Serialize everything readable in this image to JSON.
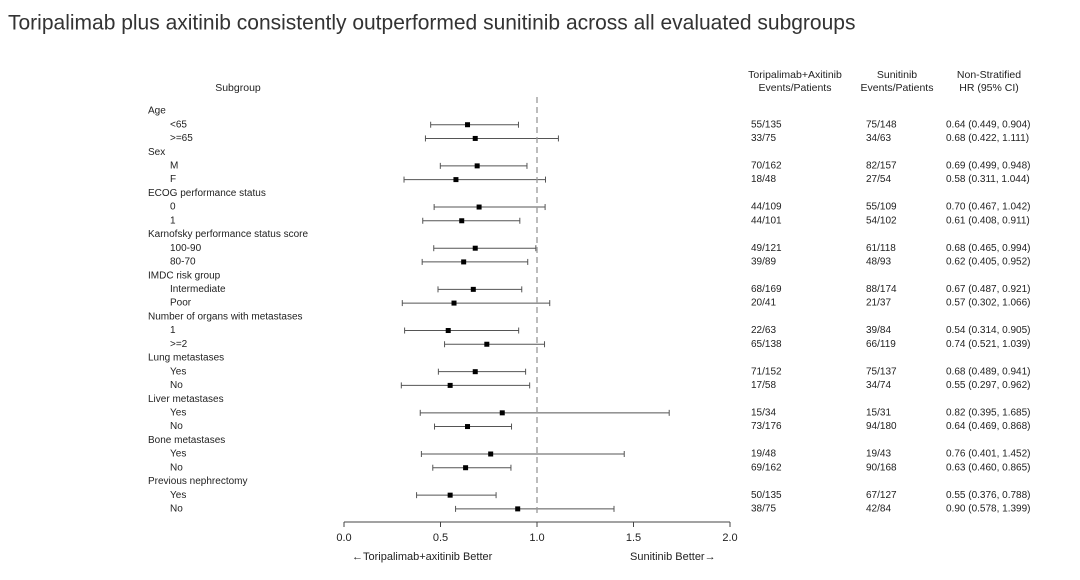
{
  "chart_data": {
    "type": "forest",
    "title": "Toripalimab plus axitinib consistently outperformed sunitinib across all evaluated subgroups",
    "subgroup_header": "Subgroup",
    "column_headers": [
      [
        "Toripalimab+Axitinib",
        "Events/Patients"
      ],
      [
        "Sunitinib",
        "Events/Patients"
      ],
      [
        "Non-Stratified",
        "HR (95% CI)"
      ]
    ],
    "groups": [
      {
        "name": "Age",
        "rows": [
          {
            "label": "<65",
            "tor": "55/135",
            "sun": "75/148",
            "hr": 0.64,
            "lo": 0.449,
            "hi": 0.904,
            "hr_label": "0.64 (0.449, 0.904)"
          },
          {
            "label": ">=65",
            "tor": "33/75",
            "sun": "34/63",
            "hr": 0.68,
            "lo": 0.422,
            "hi": 1.111,
            "hr_label": "0.68 (0.422, 1.111)"
          }
        ]
      },
      {
        "name": "Sex",
        "rows": [
          {
            "label": "M",
            "tor": "70/162",
            "sun": "82/157",
            "hr": 0.69,
            "lo": 0.499,
            "hi": 0.948,
            "hr_label": "0.69 (0.499, 0.948)"
          },
          {
            "label": "F",
            "tor": "18/48",
            "sun": "27/54",
            "hr": 0.58,
            "lo": 0.311,
            "hi": 1.044,
            "hr_label": "0.58 (0.311, 1.044)"
          }
        ]
      },
      {
        "name": "ECOG performance status",
        "rows": [
          {
            "label": "0",
            "tor": "44/109",
            "sun": "55/109",
            "hr": 0.7,
            "lo": 0.467,
            "hi": 1.042,
            "hr_label": "0.70 (0.467, 1.042)"
          },
          {
            "label": "1",
            "tor": "44/101",
            "sun": "54/102",
            "hr": 0.61,
            "lo": 0.408,
            "hi": 0.911,
            "hr_label": "0.61 (0.408, 0.911)"
          }
        ]
      },
      {
        "name": "Karnofsky performance status score",
        "rows": [
          {
            "label": "100-90",
            "tor": "49/121",
            "sun": "61/118",
            "hr": 0.68,
            "lo": 0.465,
            "hi": 0.994,
            "hr_label": "0.68 (0.465, 0.994)"
          },
          {
            "label": "80-70",
            "tor": "39/89",
            "sun": "48/93",
            "hr": 0.62,
            "lo": 0.405,
            "hi": 0.952,
            "hr_label": "0.62 (0.405, 0.952)"
          }
        ]
      },
      {
        "name": "IMDC risk group",
        "rows": [
          {
            "label": "Intermediate",
            "tor": "68/169",
            "sun": "88/174",
            "hr": 0.67,
            "lo": 0.487,
            "hi": 0.921,
            "hr_label": "0.67 (0.487, 0.921)"
          },
          {
            "label": "Poor",
            "tor": "20/41",
            "sun": "21/37",
            "hr": 0.57,
            "lo": 0.302,
            "hi": 1.066,
            "hr_label": "0.57 (0.302, 1.066)"
          }
        ]
      },
      {
        "name": "Number of organs with metastases",
        "rows": [
          {
            "label": "1",
            "tor": "22/63",
            "sun": "39/84",
            "hr": 0.54,
            "lo": 0.314,
            "hi": 0.905,
            "hr_label": "0.54 (0.314, 0.905)"
          },
          {
            "label": ">=2",
            "tor": "65/138",
            "sun": "66/119",
            "hr": 0.74,
            "lo": 0.521,
            "hi": 1.039,
            "hr_label": "0.74 (0.521, 1.039)"
          }
        ]
      },
      {
        "name": "Lung metastases",
        "rows": [
          {
            "label": "Yes",
            "tor": "71/152",
            "sun": "75/137",
            "hr": 0.68,
            "lo": 0.489,
            "hi": 0.941,
            "hr_label": "0.68 (0.489, 0.941)"
          },
          {
            "label": "No",
            "tor": "17/58",
            "sun": "34/74",
            "hr": 0.55,
            "lo": 0.297,
            "hi": 0.962,
            "hr_label": "0.55 (0.297, 0.962)"
          }
        ]
      },
      {
        "name": "Liver metastases",
        "rows": [
          {
            "label": "Yes",
            "tor": "15/34",
            "sun": "15/31",
            "hr": 0.82,
            "lo": 0.395,
            "hi": 1.685,
            "hr_label": "0.82 (0.395, 1.685)"
          },
          {
            "label": "No",
            "tor": "73/176",
            "sun": "94/180",
            "hr": 0.64,
            "lo": 0.469,
            "hi": 0.868,
            "hr_label": "0.64 (0.469, 0.868)"
          }
        ]
      },
      {
        "name": "Bone metastases",
        "rows": [
          {
            "label": "Yes",
            "tor": "19/48",
            "sun": "19/43",
            "hr": 0.76,
            "lo": 0.401,
            "hi": 1.452,
            "hr_label": "0.76 (0.401, 1.452)"
          },
          {
            "label": "No",
            "tor": "69/162",
            "sun": "90/168",
            "hr": 0.63,
            "lo": 0.46,
            "hi": 0.865,
            "hr_label": "0.63 (0.460, 0.865)"
          }
        ]
      },
      {
        "name": "Previous nephrectomy",
        "rows": [
          {
            "label": "Yes",
            "tor": "50/135",
            "sun": "67/127",
            "hr": 0.55,
            "lo": 0.376,
            "hi": 0.788,
            "hr_label": "0.55 (0.376, 0.788)"
          },
          {
            "label": "No",
            "tor": "38/75",
            "sun": "42/84",
            "hr": 0.9,
            "lo": 0.578,
            "hi": 1.399,
            "hr_label": "0.90 (0.578, 1.399)"
          }
        ]
      }
    ],
    "xlim": [
      0,
      2
    ],
    "xticks": [
      {
        "value": 0,
        "label": "0.0"
      },
      0.5,
      {
        "value": 1,
        "label": "1.0"
      },
      1.5,
      {
        "value": 2,
        "label": "2.0"
      }
    ],
    "reference_line": 1,
    "x_label_left": "←Toripalimab+axitinib Better",
    "x_label_right": "Sunitinib Better→",
    "color": "#000000"
  }
}
